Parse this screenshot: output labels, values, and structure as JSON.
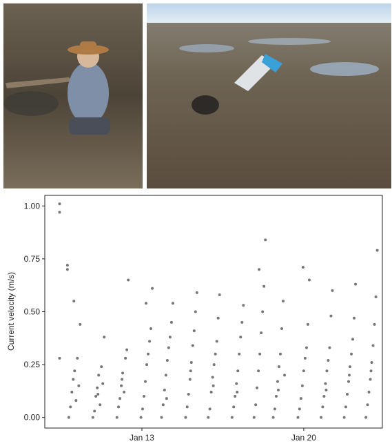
{
  "chart_data": {
    "type": "scatter",
    "y_label": "Current velocity (m/s)",
    "color": "#777777",
    "xlim": [
      8.8,
      23.4
    ],
    "ylim": [
      -0.05,
      1.05
    ],
    "xticks": [
      {
        "value": 13,
        "label": "Jan 13"
      },
      {
        "value": 20,
        "label": "Jan 20"
      }
    ],
    "yticks": [
      {
        "value": 0,
        "label": "0.00"
      },
      {
        "value": 0.25,
        "label": "0.25"
      },
      {
        "value": 0.5,
        "label": "0.50"
      },
      {
        "value": 0.75,
        "label": "0.75"
      },
      {
        "value": 1,
        "label": "1.00"
      }
    ],
    "x": [
      9.44,
      9.44,
      9.44,
      9.78,
      9.78,
      9.84,
      9.91,
      9.97,
      10.03,
      10.09,
      10.15,
      10.21,
      10.27,
      10.33,
      10.06,
      10.88,
      10.95,
      11.01,
      11.07,
      11.13,
      11.19,
      11.25,
      11.31,
      11.37,
      11.1,
      11.92,
      11.99,
      12.05,
      12.11,
      12.17,
      12.23,
      12.29,
      12.35,
      12.41,
      12.14,
      12.96,
      13.03,
      13.09,
      13.15,
      13.21,
      13.27,
      13.33,
      13.39,
      13.45,
      13.18,
      13.85,
      13.92,
      13.98,
      14.04,
      14.1,
      14.16,
      14.22,
      14.28,
      14.34,
      14.07,
      14.89,
      14.96,
      15.02,
      15.08,
      15.14,
      15.2,
      15.26,
      15.32,
      15.38,
      15.11,
      15.87,
      15.94,
      16.0,
      16.06,
      16.12,
      16.18,
      16.24,
      16.3,
      16.36,
      16.09,
      16.9,
      16.97,
      17.03,
      17.09,
      17.15,
      17.21,
      17.27,
      17.33,
      17.39,
      17.12,
      17.85,
      17.92,
      17.98,
      18.04,
      18.1,
      18.16,
      18.22,
      18.28,
      18.34,
      18.07,
      18.68,
      18.75,
      18.81,
      18.87,
      18.93,
      18.99,
      19.05,
      19.11,
      19.17,
      18.9,
      19.75,
      19.82,
      19.88,
      19.94,
      20.0,
      20.06,
      20.12,
      20.18,
      20.24,
      19.97,
      20.75,
      20.82,
      20.88,
      20.94,
      21.0,
      21.06,
      21.12,
      21.18,
      21.24,
      20.97,
      21.75,
      21.82,
      21.88,
      21.94,
      22.0,
      22.06,
      22.12,
      22.18,
      22.24,
      21.97,
      22.69,
      22.76,
      22.82,
      22.88,
      22.94,
      23.0,
      23.06,
      23.12,
      23.18,
      22.91
    ],
    "values": [
      1.01,
      0.97,
      0.28,
      0.72,
      0.7,
      0,
      0.05,
      0.12,
      0.18,
      0.22,
      0.08,
      0.28,
      0.15,
      0.44,
      0.55,
      0,
      0.03,
      0.1,
      0.14,
      0.2,
      0.06,
      0.24,
      0.16,
      0.38,
      0.11,
      0,
      0.05,
      0.09,
      0.15,
      0.21,
      0.12,
      0.28,
      0.32,
      0.65,
      0.18,
      0,
      0.04,
      0.1,
      0.17,
      0.25,
      0.3,
      0.36,
      0.42,
      0.61,
      0.54,
      0,
      0.06,
      0.13,
      0.2,
      0.27,
      0.33,
      0.38,
      0.45,
      0.54,
      0.09,
      0,
      0.05,
      0.11,
      0.18,
      0.26,
      0.34,
      0.41,
      0.5,
      0.59,
      0.22,
      0,
      0.04,
      0.12,
      0.19,
      0.25,
      0.3,
      0.36,
      0.47,
      0.58,
      0.15,
      0,
      0.05,
      0.1,
      0.16,
      0.22,
      0.3,
      0.38,
      0.45,
      0.53,
      0.12,
      0,
      0.06,
      0.14,
      0.22,
      0.3,
      0.4,
      0.5,
      0.62,
      0.84,
      0.7,
      0,
      0.04,
      0.1,
      0.17,
      0.24,
      0.3,
      0.42,
      0.55,
      0.2,
      0.13,
      0,
      0.04,
      0.09,
      0.15,
      0.22,
      0.28,
      0.33,
      0.44,
      0.65,
      0.71,
      0,
      0.05,
      0.1,
      0.16,
      0.22,
      0.27,
      0.33,
      0.48,
      0.6,
      0.13,
      0,
      0.05,
      0.11,
      0.17,
      0.24,
      0.3,
      0.37,
      0.47,
      0.63,
      0.2,
      0,
      0.06,
      0.12,
      0.18,
      0.26,
      0.34,
      0.44,
      0.57,
      0.79,
      0.22
    ]
  }
}
